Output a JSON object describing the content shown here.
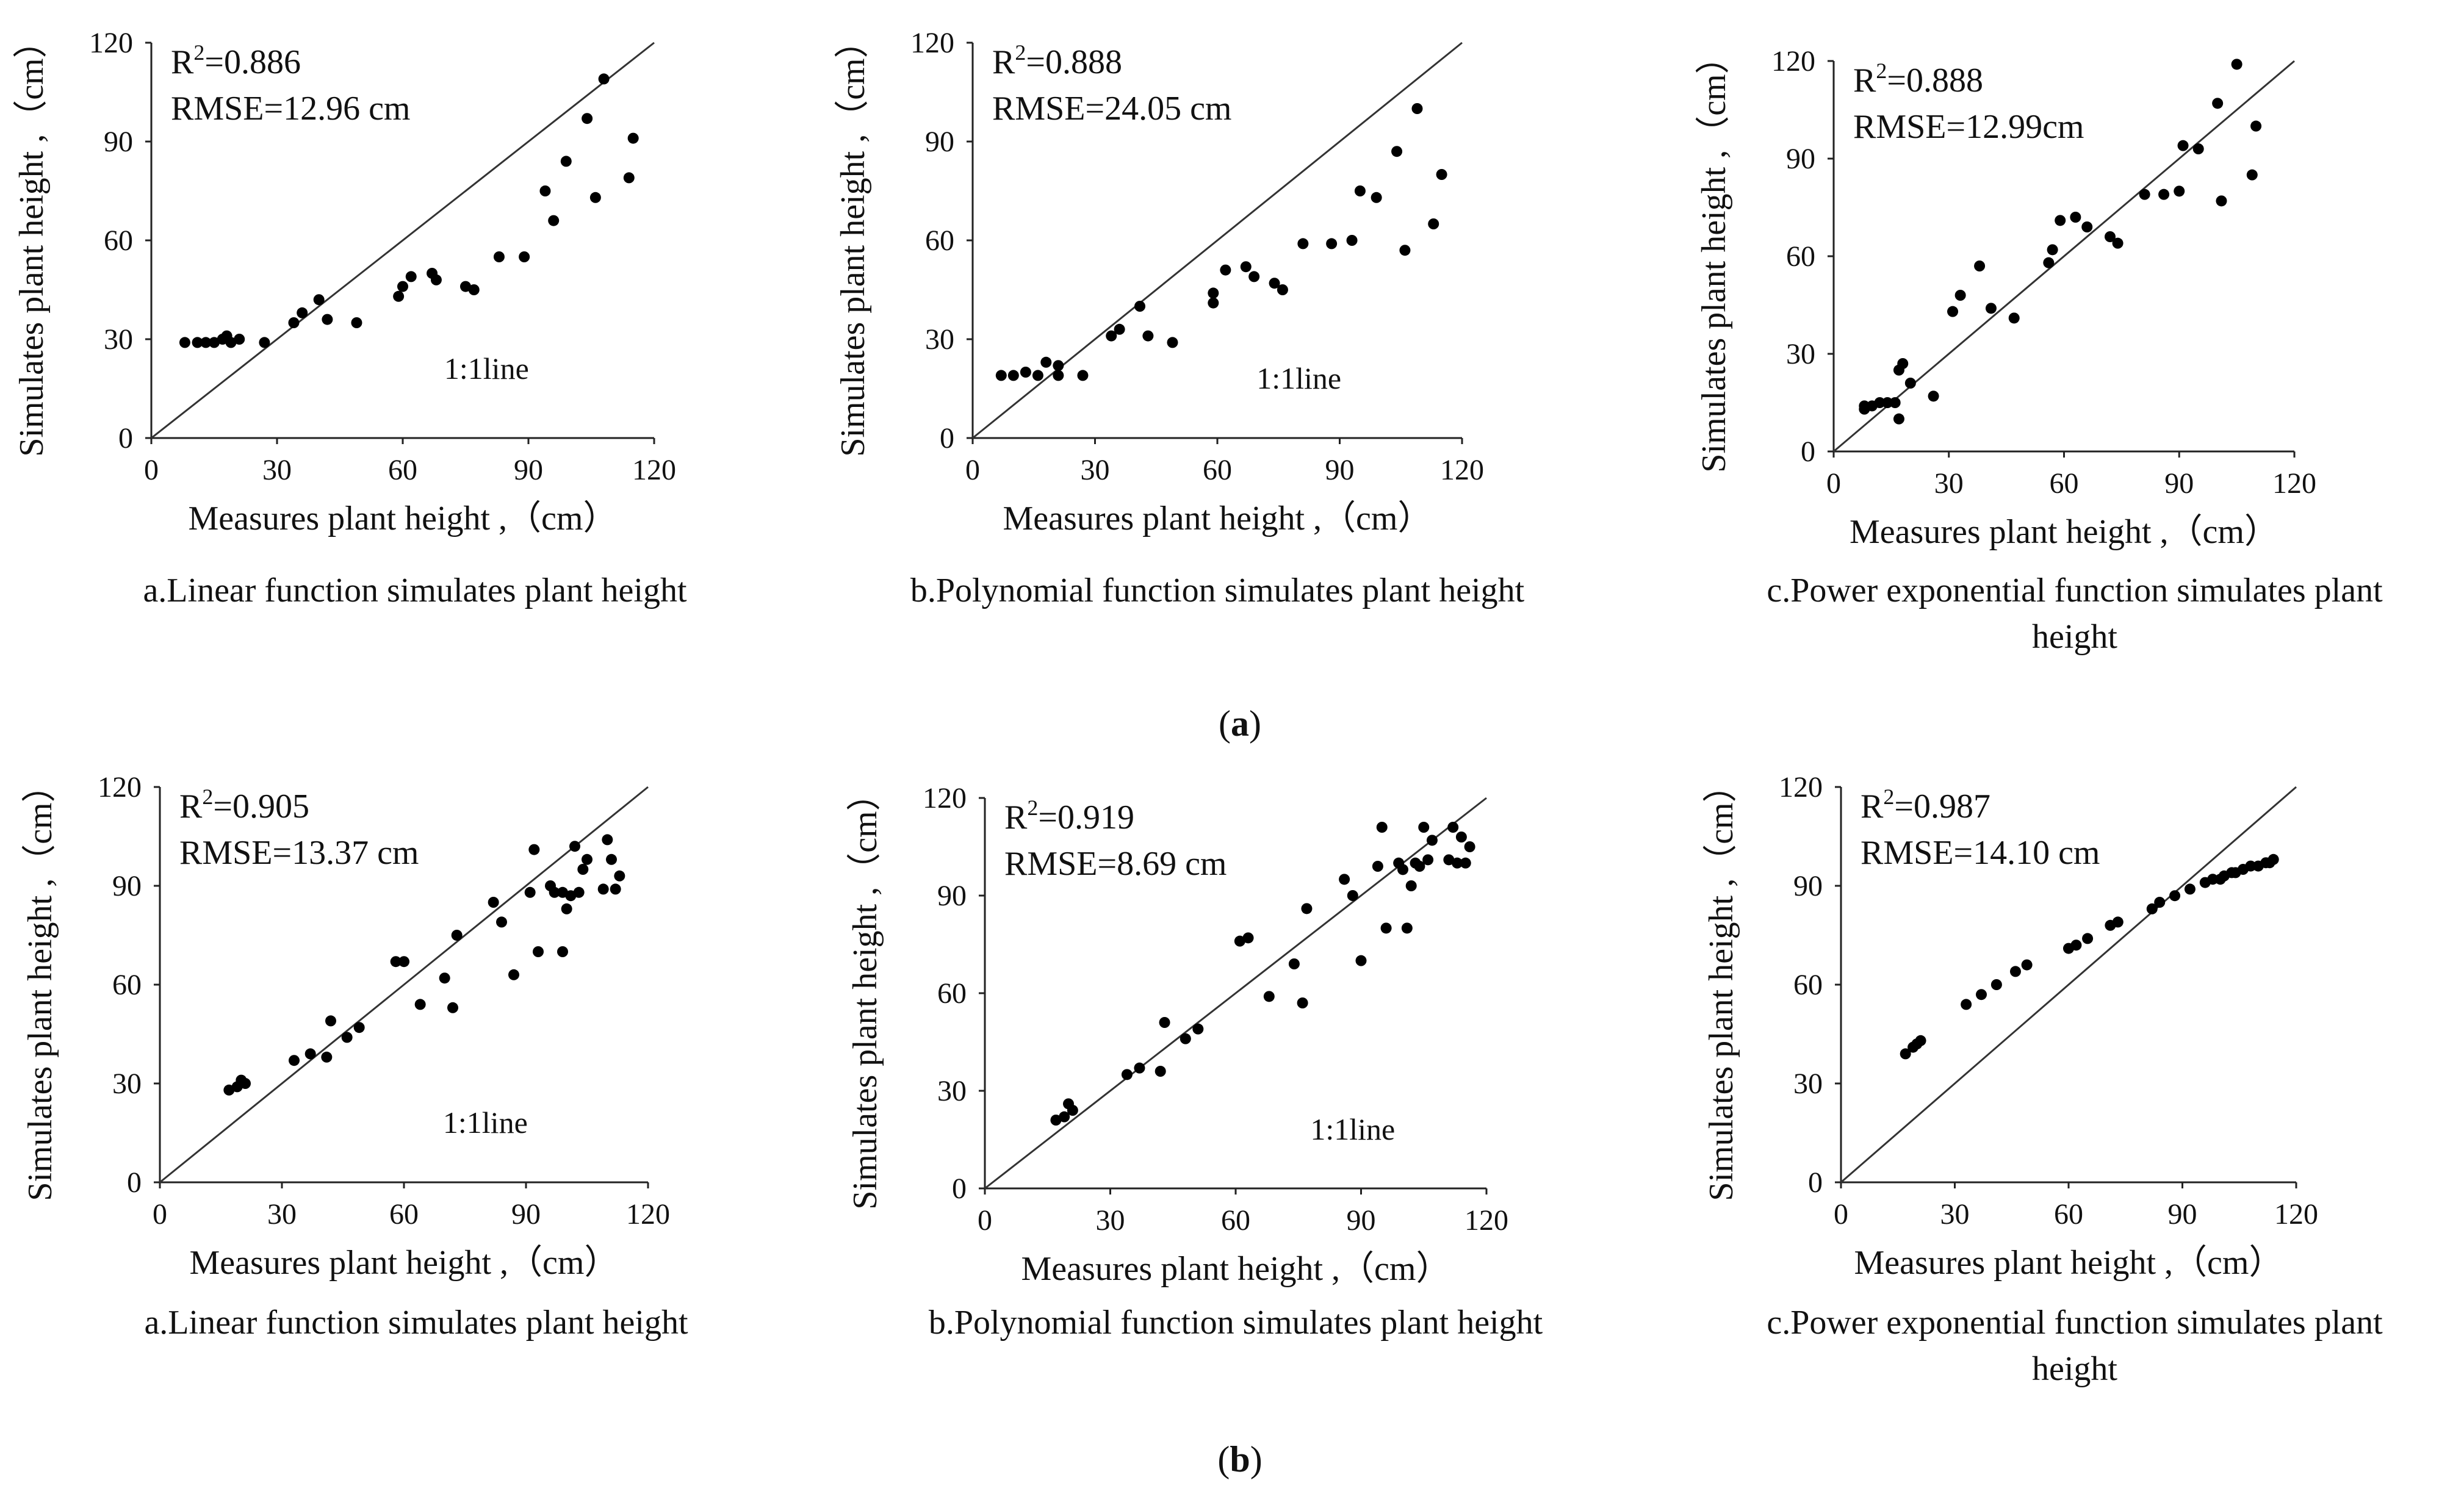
{
  "figure": {
    "panel_captions": [
      {
        "open": "(",
        "letter": "a",
        "close": ")"
      },
      {
        "open": "(",
        "letter": "b",
        "close": ")"
      }
    ]
  },
  "chart_data": [
    {
      "type": "scatter",
      "group": "a",
      "title_lines": [
        "a.Linear function simulates plant height"
      ],
      "xlabel": "Measures plant height ,（cm）",
      "ylabel": "Simulates plant height ,（cm）",
      "xlim": [
        0,
        120
      ],
      "ylim": [
        0,
        120
      ],
      "xticks": [
        {
          "v": 0,
          "label": "0"
        },
        {
          "v": 30,
          "label": "30"
        },
        {
          "v": 60,
          "label": "60"
        },
        {
          "v": 90,
          "label": "90"
        },
        {
          "v": 120,
          "label": "120"
        }
      ],
      "yticks": [
        {
          "v": 0,
          "label": "0"
        },
        {
          "v": 30,
          "label": "30"
        },
        {
          "v": 60,
          "label": "60"
        },
        {
          "v": 90,
          "label": "90"
        },
        {
          "v": 120,
          "label": "120"
        }
      ],
      "r2_base": "R",
      "r2_exp": "2",
      "r2_value": "=0.886",
      "rmse": "RMSE=12.96 cm",
      "line_label": "1:1line",
      "line_label_pos": [
        80,
        18
      ],
      "points": [
        [
          8,
          29
        ],
        [
          11,
          29
        ],
        [
          13,
          29
        ],
        [
          15,
          29
        ],
        [
          17,
          30
        ],
        [
          18,
          31
        ],
        [
          19,
          29
        ],
        [
          21,
          30
        ],
        [
          27,
          29
        ],
        [
          34,
          35
        ],
        [
          36,
          38
        ],
        [
          40,
          42
        ],
        [
          42,
          36
        ],
        [
          49,
          35
        ],
        [
          59,
          43
        ],
        [
          60,
          46
        ],
        [
          62,
          49
        ],
        [
          67,
          50
        ],
        [
          68,
          48
        ],
        [
          75,
          46
        ],
        [
          77,
          45
        ],
        [
          83,
          55
        ],
        [
          89,
          55
        ],
        [
          94,
          75
        ],
        [
          96,
          66
        ],
        [
          99,
          84
        ],
        [
          104,
          97
        ],
        [
          106,
          73
        ],
        [
          108,
          109
        ],
        [
          114,
          79
        ],
        [
          115,
          91
        ]
      ]
    },
    {
      "type": "scatter",
      "group": "a",
      "title_lines": [
        "b.Polynomial function simulates plant height"
      ],
      "xlabel": "Measures plant height ,（cm）",
      "ylabel": "Simulates plant height ,（cm）",
      "xlim": [
        0,
        120
      ],
      "ylim": [
        0,
        120
      ],
      "xticks": [
        {
          "v": 0,
          "label": "0"
        },
        {
          "v": 30,
          "label": "30"
        },
        {
          "v": 60,
          "label": "60"
        },
        {
          "v": 90,
          "label": "90"
        },
        {
          "v": 120,
          "label": "120"
        }
      ],
      "yticks": [
        {
          "v": 0,
          "label": "0"
        },
        {
          "v": 30,
          "label": "30"
        },
        {
          "v": 60,
          "label": "60"
        },
        {
          "v": 90,
          "label": "90"
        },
        {
          "v": 120,
          "label": "120"
        }
      ],
      "r2_base": "R",
      "r2_exp": "2",
      "r2_value": "=0.888",
      "rmse": "RMSE=24.05 cm",
      "line_label": "1:1line",
      "line_label_pos": [
        80,
        15
      ],
      "points": [
        [
          7,
          19
        ],
        [
          10,
          19
        ],
        [
          13,
          20
        ],
        [
          16,
          19
        ],
        [
          18,
          23
        ],
        [
          21,
          22
        ],
        [
          21,
          19
        ],
        [
          27,
          19
        ],
        [
          34,
          31
        ],
        [
          36,
          33
        ],
        [
          41,
          40
        ],
        [
          43,
          31
        ],
        [
          49,
          29
        ],
        [
          59,
          41
        ],
        [
          59,
          44
        ],
        [
          62,
          51
        ],
        [
          67,
          52
        ],
        [
          69,
          49
        ],
        [
          74,
          47
        ],
        [
          76,
          45
        ],
        [
          81,
          59
        ],
        [
          88,
          59
        ],
        [
          93,
          60
        ],
        [
          95,
          75
        ],
        [
          99,
          73
        ],
        [
          104,
          87
        ],
        [
          106,
          57
        ],
        [
          109,
          100
        ],
        [
          113,
          65
        ],
        [
          115,
          80
        ]
      ]
    },
    {
      "type": "scatter",
      "group": "a",
      "title_lines": [
        "c.Power exponential function simulates plant",
        "height"
      ],
      "xlabel": "Measures plant height ,（cm）",
      "ylabel": "Simulates plant height ,（cm）",
      "xlim": [
        0,
        120
      ],
      "ylim": [
        0,
        120
      ],
      "xticks": [
        {
          "v": 0,
          "label": "0"
        },
        {
          "v": 30,
          "label": "30"
        },
        {
          "v": 60,
          "label": "60"
        },
        {
          "v": 90,
          "label": "90"
        },
        {
          "v": 120,
          "label": "120"
        }
      ],
      "yticks": [
        {
          "v": 0,
          "label": "0"
        },
        {
          "v": 30,
          "label": "30"
        },
        {
          "v": 60,
          "label": "60"
        },
        {
          "v": 90,
          "label": "90"
        },
        {
          "v": 120,
          "label": "120"
        }
      ],
      "r2_base": "R",
      "r2_exp": "2",
      "r2_value": "=0.888",
      "rmse": "RMSE=12.99cm",
      "line_label": "",
      "line_label_pos": [
        80,
        15
      ],
      "points": [
        [
          8,
          13
        ],
        [
          8,
          14
        ],
        [
          10,
          14
        ],
        [
          12,
          15
        ],
        [
          14,
          15
        ],
        [
          16,
          15
        ],
        [
          17,
          10
        ],
        [
          17,
          25
        ],
        [
          18,
          27
        ],
        [
          20,
          21
        ],
        [
          26,
          17
        ],
        [
          31,
          43
        ],
        [
          33,
          48
        ],
        [
          38,
          57
        ],
        [
          41,
          44
        ],
        [
          47,
          41
        ],
        [
          56,
          58
        ],
        [
          57,
          62
        ],
        [
          59,
          71
        ],
        [
          63,
          72
        ],
        [
          66,
          69
        ],
        [
          72,
          66
        ],
        [
          74,
          64
        ],
        [
          81,
          79
        ],
        [
          86,
          79
        ],
        [
          90,
          80
        ],
        [
          91,
          94
        ],
        [
          95,
          93
        ],
        [
          100,
          107
        ],
        [
          101,
          77
        ],
        [
          105,
          119
        ],
        [
          109,
          85
        ],
        [
          110,
          100
        ]
      ]
    },
    {
      "type": "scatter",
      "group": "b",
      "title_lines": [
        "a.Linear function simulates plant height"
      ],
      "xlabel": "Measures plant height ,（cm）",
      "ylabel": "Simulates plant height ,（cm）",
      "xlim": [
        0,
        120
      ],
      "ylim": [
        0,
        120
      ],
      "xticks": [
        {
          "v": 0,
          "label": "0"
        },
        {
          "v": 30,
          "label": "30"
        },
        {
          "v": 60,
          "label": "60"
        },
        {
          "v": 90,
          "label": "90"
        },
        {
          "v": 120,
          "label": "120"
        }
      ],
      "yticks": [
        {
          "v": 0,
          "label": "0"
        },
        {
          "v": 30,
          "label": "30"
        },
        {
          "v": 60,
          "label": "60"
        },
        {
          "v": 90,
          "label": "90"
        },
        {
          "v": 120,
          "label": "120"
        }
      ],
      "r2_base": "R",
      "r2_exp": "2",
      "r2_value": "=0.905",
      "rmse": "RMSE=13.37 cm",
      "line_label": "1:1line",
      "line_label_pos": [
        80,
        15
      ],
      "points": [
        [
          17,
          28
        ],
        [
          19,
          29
        ],
        [
          20,
          31
        ],
        [
          21,
          30
        ],
        [
          33,
          37
        ],
        [
          37,
          39
        ],
        [
          41,
          38
        ],
        [
          42,
          49
        ],
        [
          46,
          44
        ],
        [
          49,
          47
        ],
        [
          58,
          67
        ],
        [
          60,
          67
        ],
        [
          64,
          54
        ],
        [
          70,
          62
        ],
        [
          72,
          53
        ],
        [
          73,
          75
        ],
        [
          82,
          85
        ],
        [
          84,
          79
        ],
        [
          87,
          63
        ],
        [
          91,
          88
        ],
        [
          92,
          101
        ],
        [
          93,
          70
        ],
        [
          96,
          90
        ],
        [
          97,
          88
        ],
        [
          99,
          70
        ],
        [
          99,
          88
        ],
        [
          100,
          83
        ],
        [
          101,
          87
        ],
        [
          102,
          102
        ],
        [
          103,
          88
        ],
        [
          104,
          95
        ],
        [
          105,
          98
        ],
        [
          109,
          89
        ],
        [
          110,
          104
        ],
        [
          111,
          98
        ],
        [
          112,
          89
        ],
        [
          113,
          93
        ]
      ]
    },
    {
      "type": "scatter",
      "group": "b",
      "title_lines": [
        "b.Polynomial function simulates plant height"
      ],
      "xlabel": "Measures plant height ,（cm）",
      "ylabel": "Simulates plant height ,（cm）",
      "xlim": [
        0,
        120
      ],
      "ylim": [
        0,
        120
      ],
      "xticks": [
        {
          "v": 0,
          "label": "0"
        },
        {
          "v": 30,
          "label": "30"
        },
        {
          "v": 60,
          "label": "60"
        },
        {
          "v": 90,
          "label": "90"
        },
        {
          "v": 120,
          "label": "120"
        }
      ],
      "yticks": [
        {
          "v": 0,
          "label": "0"
        },
        {
          "v": 30,
          "label": "30"
        },
        {
          "v": 60,
          "label": "60"
        },
        {
          "v": 90,
          "label": "90"
        },
        {
          "v": 120,
          "label": "120"
        }
      ],
      "r2_base": "R",
      "r2_exp": "2",
      "r2_value": "=0.919",
      "rmse": "RMSE=8.69 cm",
      "line_label": "1:1line",
      "line_label_pos": [
        88,
        15
      ],
      "points": [
        [
          17,
          21
        ],
        [
          19,
          22
        ],
        [
          20,
          26
        ],
        [
          21,
          24
        ],
        [
          34,
          35
        ],
        [
          37,
          37
        ],
        [
          42,
          36
        ],
        [
          43,
          51
        ],
        [
          48,
          46
        ],
        [
          51,
          49
        ],
        [
          61,
          76
        ],
        [
          63,
          77
        ],
        [
          68,
          59
        ],
        [
          74,
          69
        ],
        [
          76,
          57
        ],
        [
          77,
          86
        ],
        [
          86,
          95
        ],
        [
          88,
          90
        ],
        [
          90,
          70
        ],
        [
          94,
          99
        ],
        [
          95,
          111
        ],
        [
          96,
          80
        ],
        [
          99,
          100
        ],
        [
          100,
          98
        ],
        [
          101,
          80
        ],
        [
          102,
          93
        ],
        [
          103,
          100
        ],
        [
          104,
          99
        ],
        [
          105,
          111
        ],
        [
          106,
          101
        ],
        [
          107,
          107
        ],
        [
          111,
          101
        ],
        [
          112,
          111
        ],
        [
          113,
          100
        ],
        [
          114,
          108
        ],
        [
          115,
          100
        ],
        [
          116,
          105
        ]
      ]
    },
    {
      "type": "scatter",
      "group": "b",
      "title_lines": [
        "c.Power exponential function simulates plant",
        "height"
      ],
      "xlabel": "Measures plant height ,（cm）",
      "ylabel": "Simulates plant height ,（cm）",
      "xlim": [
        0,
        120
      ],
      "ylim": [
        0,
        120
      ],
      "xticks": [
        {
          "v": 0,
          "label": "0"
        },
        {
          "v": 30,
          "label": "30"
        },
        {
          "v": 60,
          "label": "60"
        },
        {
          "v": 90,
          "label": "90"
        },
        {
          "v": 120,
          "label": "120"
        }
      ],
      "yticks": [
        {
          "v": 0,
          "label": "0"
        },
        {
          "v": 30,
          "label": "30"
        },
        {
          "v": 60,
          "label": "60"
        },
        {
          "v": 90,
          "label": "90"
        },
        {
          "v": 120,
          "label": "120"
        }
      ],
      "r2_base": "R",
      "r2_exp": "2",
      "r2_value": "=0.987",
      "rmse": "RMSE=14.10 cm",
      "line_label": "",
      "line_label_pos": [
        80,
        15
      ],
      "points": [
        [
          17,
          39
        ],
        [
          19,
          41
        ],
        [
          20,
          42
        ],
        [
          21,
          43
        ],
        [
          33,
          54
        ],
        [
          37,
          57
        ],
        [
          41,
          60
        ],
        [
          46,
          64
        ],
        [
          49,
          66
        ],
        [
          60,
          71
        ],
        [
          62,
          72
        ],
        [
          65,
          74
        ],
        [
          71,
          78
        ],
        [
          73,
          79
        ],
        [
          82,
          83
        ],
        [
          84,
          85
        ],
        [
          88,
          87
        ],
        [
          92,
          89
        ],
        [
          96,
          91
        ],
        [
          98,
          92
        ],
        [
          100,
          92
        ],
        [
          101,
          93
        ],
        [
          103,
          94
        ],
        [
          104,
          94
        ],
        [
          106,
          95
        ],
        [
          108,
          96
        ],
        [
          110,
          96
        ],
        [
          112,
          97
        ],
        [
          113,
          97
        ],
        [
          114,
          98
        ]
      ]
    }
  ]
}
